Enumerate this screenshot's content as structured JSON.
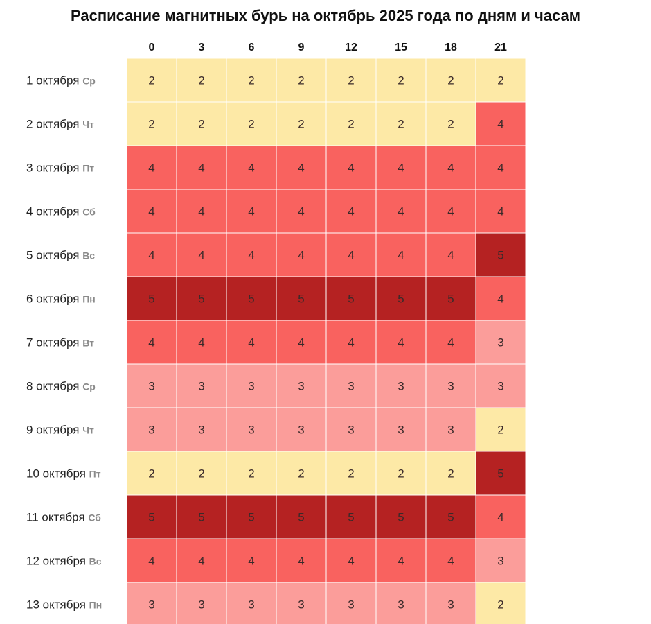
{
  "chart_data": {
    "type": "heatmap",
    "title": "Расписание магнитных бурь на октябрь 2025 года по дням и часам",
    "hours": [
      "0",
      "3",
      "6",
      "9",
      "12",
      "15",
      "18",
      "21"
    ],
    "days": [
      {
        "date": "1 октября",
        "weekday": "Ср",
        "values": [
          2,
          2,
          2,
          2,
          2,
          2,
          2,
          2
        ]
      },
      {
        "date": "2 октября",
        "weekday": "Чт",
        "values": [
          2,
          2,
          2,
          2,
          2,
          2,
          2,
          4
        ]
      },
      {
        "date": "3 октября",
        "weekday": "Пт",
        "values": [
          4,
          4,
          4,
          4,
          4,
          4,
          4,
          4
        ]
      },
      {
        "date": "4 октября",
        "weekday": "Сб",
        "values": [
          4,
          4,
          4,
          4,
          4,
          4,
          4,
          4
        ]
      },
      {
        "date": "5 октября",
        "weekday": "Вс",
        "values": [
          4,
          4,
          4,
          4,
          4,
          4,
          4,
          5
        ]
      },
      {
        "date": "6 октября",
        "weekday": "Пн",
        "values": [
          5,
          5,
          5,
          5,
          5,
          5,
          5,
          4
        ]
      },
      {
        "date": "7 октября",
        "weekday": "Вт",
        "values": [
          4,
          4,
          4,
          4,
          4,
          4,
          4,
          3
        ]
      },
      {
        "date": "8 октября",
        "weekday": "Ср",
        "values": [
          3,
          3,
          3,
          3,
          3,
          3,
          3,
          3
        ]
      },
      {
        "date": "9 октября",
        "weekday": "Чт",
        "values": [
          3,
          3,
          3,
          3,
          3,
          3,
          3,
          2
        ]
      },
      {
        "date": "10 октября",
        "weekday": "Пт",
        "values": [
          2,
          2,
          2,
          2,
          2,
          2,
          2,
          5
        ]
      },
      {
        "date": "11 октября",
        "weekday": "Сб",
        "values": [
          5,
          5,
          5,
          5,
          5,
          5,
          5,
          4
        ]
      },
      {
        "date": "12 октября",
        "weekday": "Вс",
        "values": [
          4,
          4,
          4,
          4,
          4,
          4,
          4,
          3
        ]
      },
      {
        "date": "13 октября",
        "weekday": "Пн",
        "values": [
          3,
          3,
          3,
          3,
          3,
          3,
          3,
          2
        ]
      }
    ],
    "color_scale": {
      "2": "#fde9a6",
      "3": "#fb9d9a",
      "4": "#f9625f",
      "5": "#b52222"
    }
  }
}
